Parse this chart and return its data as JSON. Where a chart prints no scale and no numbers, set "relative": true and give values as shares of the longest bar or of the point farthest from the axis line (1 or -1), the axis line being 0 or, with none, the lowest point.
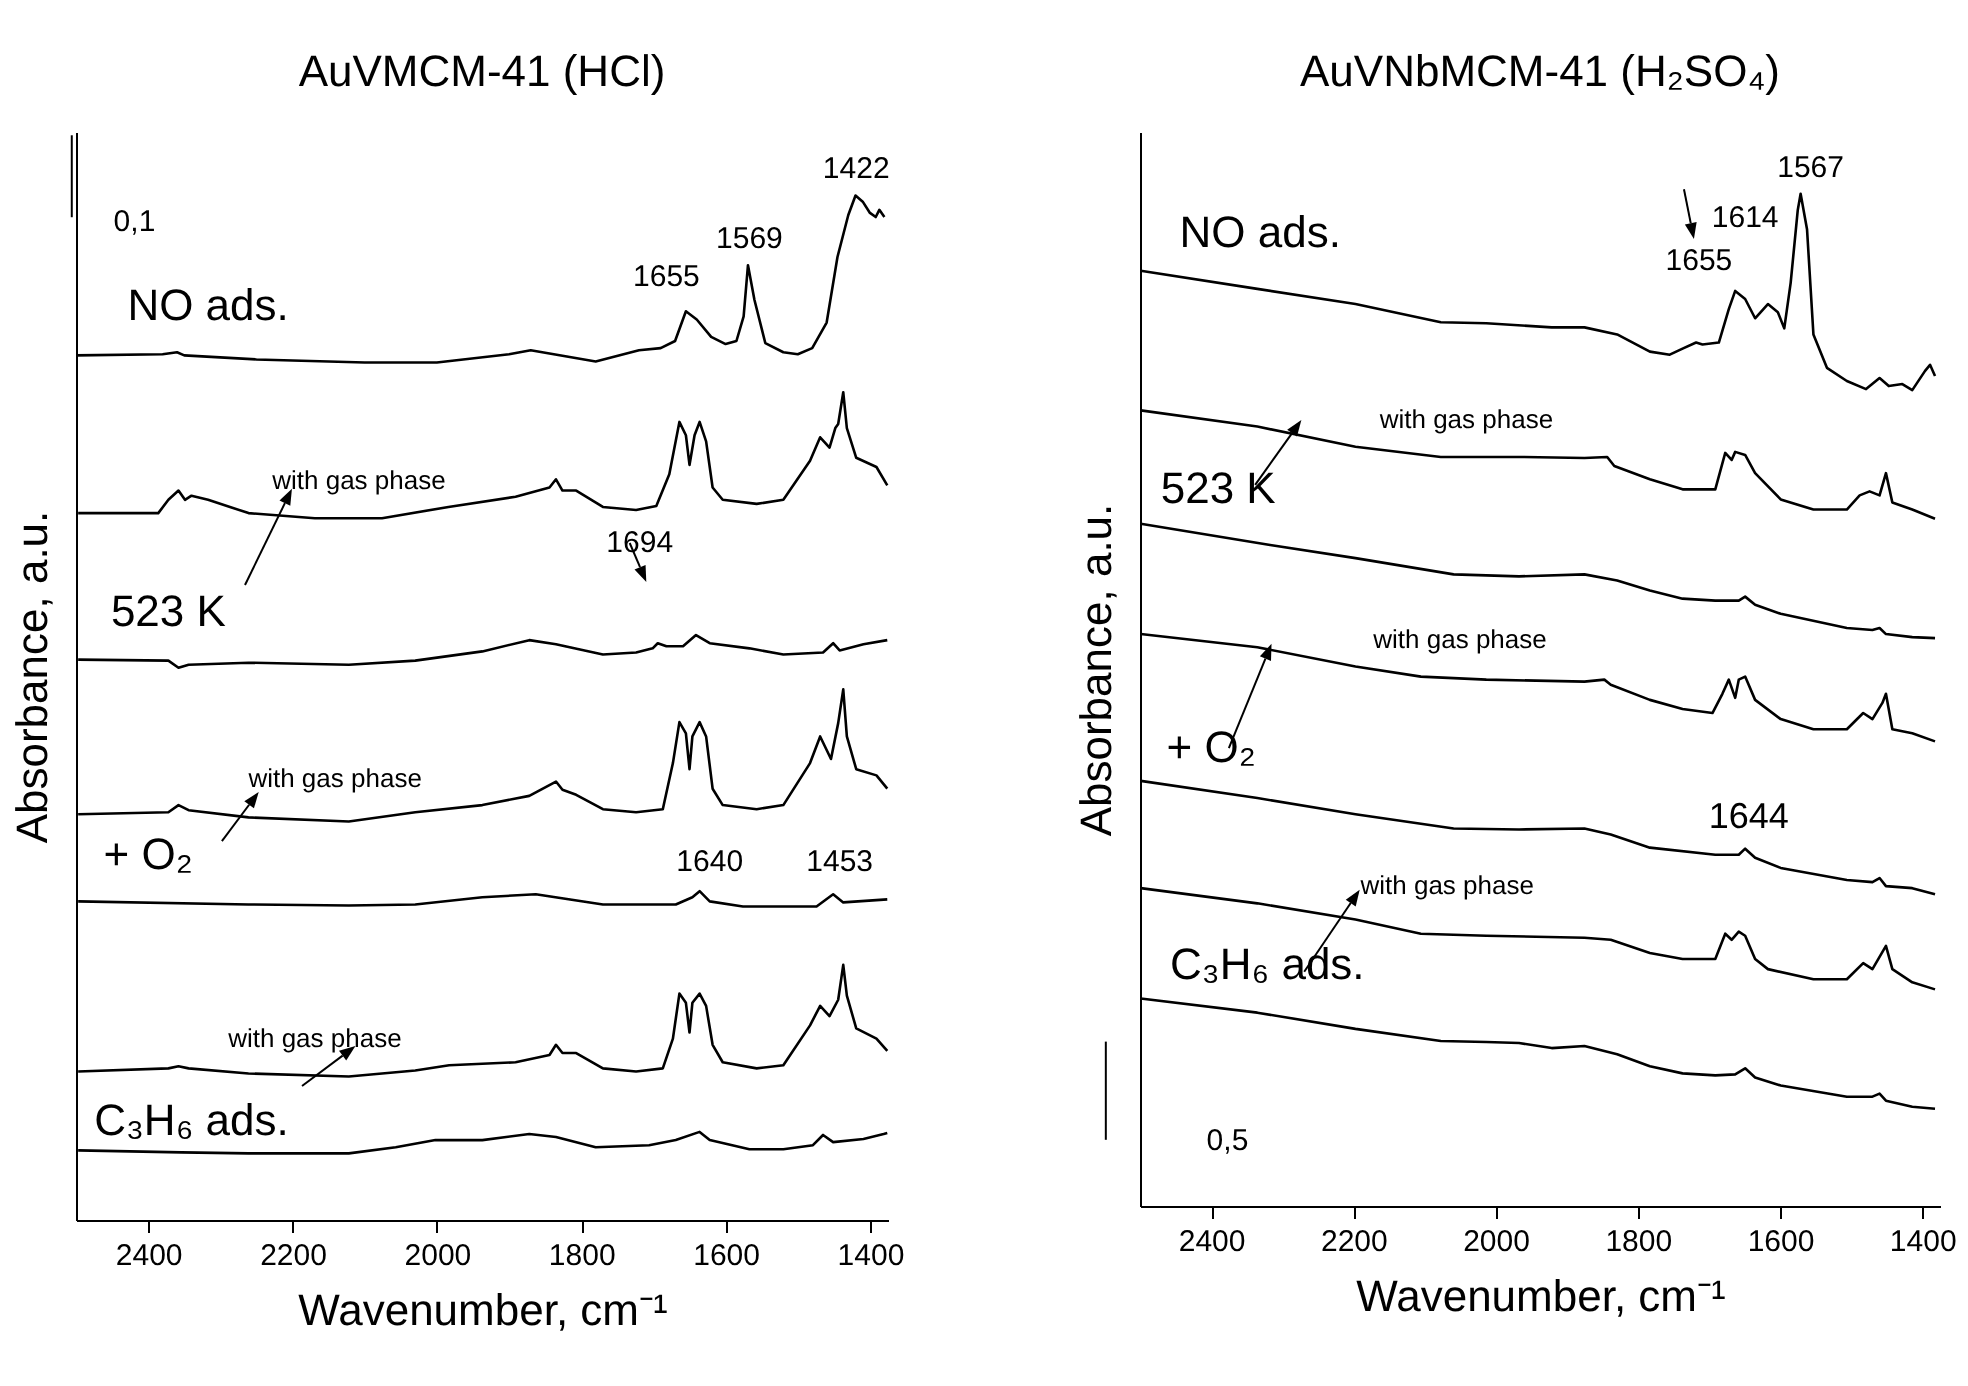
{
  "chart_data": [
    {
      "type": "line",
      "title": "AuVMCM-41 (HCl)",
      "xlabel": "Wavenumber, cm⁻¹",
      "ylabel": "Absorbance, a.u.",
      "relative": true,
      "xlim": [
        2500,
        1375
      ],
      "xticks": [
        2400,
        2200,
        2000,
        1800,
        1600,
        1400
      ],
      "series": [
        {
          "color": "#000000",
          "x": [
            2500,
            2380,
            2360,
            2350,
            2250,
            2100,
            2000,
            1900,
            1870,
            1830,
            1780,
            1720,
            1690,
            1670,
            1655,
            1640,
            1620,
            1600,
            1585,
            1575,
            1569,
            1560,
            1545,
            1520,
            1500,
            1480,
            1460,
            1445,
            1430,
            1420,
            1410,
            1400,
            1392,
            1387,
            1380
          ],
          "values": [
            0.844,
            0.845,
            0.847,
            0.844,
            0.84,
            0.837,
            0.837,
            0.845,
            0.849,
            0.844,
            0.838,
            0.849,
            0.851,
            0.858,
            0.887,
            0.879,
            0.862,
            0.855,
            0.858,
            0.882,
            0.932,
            0.898,
            0.856,
            0.847,
            0.845,
            0.851,
            0.876,
            0.94,
            0.981,
            1,
            0.994,
            0.983,
            0.979,
            0.986,
            0.979
          ]
        },
        {
          "color": "#000000",
          "x": [
            2497,
            2386,
            2372,
            2358,
            2349,
            2340,
            2317,
            2261,
            2169,
            2076,
            1984,
            1891,
            1844,
            1835,
            1826,
            1807,
            1770,
            1724,
            1696,
            1678,
            1664,
            1655,
            1650,
            1643,
            1636,
            1627,
            1618,
            1604,
            1557,
            1520,
            1483,
            1469,
            1456,
            1448,
            1444,
            1437,
            1432,
            1419,
            1391,
            1376
          ],
          "values": [
            0.69,
            0.69,
            0.703,
            0.712,
            0.703,
            0.707,
            0.703,
            0.69,
            0.685,
            0.685,
            0.696,
            0.706,
            0.715,
            0.723,
            0.712,
            0.712,
            0.696,
            0.693,
            0.697,
            0.728,
            0.779,
            0.766,
            0.737,
            0.766,
            0.779,
            0.76,
            0.715,
            0.703,
            0.699,
            0.703,
            0.741,
            0.764,
            0.754,
            0.773,
            0.777,
            0.808,
            0.773,
            0.744,
            0.735,
            0.717
          ]
        },
        {
          "color": "#000000",
          "x": [
            2497,
            2372,
            2358,
            2344,
            2261,
            2122,
            2030,
            1937,
            1872,
            1835,
            1770,
            1724,
            1701,
            1694,
            1682,
            1659,
            1641,
            1622,
            1567,
            1520,
            1465,
            1451,
            1442,
            1409,
            1376
          ],
          "values": [
            0.547,
            0.546,
            0.539,
            0.542,
            0.544,
            0.542,
            0.546,
            0.555,
            0.566,
            0.562,
            0.552,
            0.554,
            0.558,
            0.563,
            0.56,
            0.56,
            0.571,
            0.563,
            0.558,
            0.552,
            0.554,
            0.563,
            0.556,
            0.562,
            0.566
          ]
        },
        {
          "color": "#000000",
          "x": [
            2497,
            2372,
            2358,
            2344,
            2261,
            2122,
            2030,
            1937,
            1872,
            1835,
            1826,
            1807,
            1770,
            1724,
            1687,
            1673,
            1664,
            1655,
            1650,
            1646,
            1636,
            1627,
            1618,
            1604,
            1557,
            1520,
            1483,
            1469,
            1454,
            1444,
            1437,
            1432,
            1419,
            1391,
            1376
          ],
          "values": [
            0.396,
            0.398,
            0.405,
            0.4,
            0.393,
            0.389,
            0.398,
            0.405,
            0.414,
            0.428,
            0.42,
            0.415,
            0.401,
            0.398,
            0.401,
            0.446,
            0.486,
            0.475,
            0.44,
            0.472,
            0.486,
            0.472,
            0.421,
            0.405,
            0.401,
            0.405,
            0.446,
            0.472,
            0.45,
            0.485,
            0.518,
            0.472,
            0.44,
            0.434,
            0.421
          ]
        },
        {
          "color": "#000000",
          "x": [
            2497,
            2261,
            2122,
            2030,
            1937,
            1863,
            1770,
            1669,
            1646,
            1636,
            1622,
            1576,
            1474,
            1451,
            1437,
            1376
          ],
          "values": [
            0.311,
            0.308,
            0.307,
            0.308,
            0.315,
            0.318,
            0.308,
            0.308,
            0.315,
            0.321,
            0.311,
            0.306,
            0.306,
            0.318,
            0.31,
            0.313
          ]
        },
        {
          "color": "#000000",
          "x": [
            2497,
            2372,
            2358,
            2344,
            2261,
            2122,
            2030,
            1983,
            1891,
            1844,
            1835,
            1826,
            1807,
            1770,
            1724,
            1687,
            1673,
            1664,
            1655,
            1650,
            1646,
            1636,
            1627,
            1618,
            1604,
            1557,
            1520,
            1483,
            1469,
            1456,
            1444,
            1437,
            1432,
            1419,
            1391,
            1376
          ],
          "values": [
            0.145,
            0.148,
            0.15,
            0.148,
            0.143,
            0.14,
            0.146,
            0.151,
            0.154,
            0.161,
            0.171,
            0.163,
            0.163,
            0.148,
            0.145,
            0.148,
            0.177,
            0.221,
            0.212,
            0.183,
            0.212,
            0.221,
            0.209,
            0.171,
            0.154,
            0.148,
            0.151,
            0.19,
            0.209,
            0.199,
            0.215,
            0.249,
            0.219,
            0.187,
            0.177,
            0.165
          ]
        },
        {
          "color": "#000000",
          "x": [
            2497,
            2354,
            2261,
            2122,
            2057,
            2002,
            1937,
            1872,
            1835,
            1780,
            1706,
            1669,
            1636,
            1622,
            1567,
            1520,
            1479,
            1465,
            1451,
            1409,
            1381,
            1376
          ],
          "values": [
            0.068,
            0.066,
            0.065,
            0.065,
            0.071,
            0.078,
            0.078,
            0.084,
            0.081,
            0.071,
            0.073,
            0.078,
            0.086,
            0.078,
            0.069,
            0.069,
            0.073,
            0.083,
            0.076,
            0.079,
            0.084,
            0.085
          ]
        }
      ],
      "annotations": [
        "1422",
        "1569",
        "1655",
        "NO ads.",
        "with gas phase",
        "523 K",
        "1694",
        "with gas phase",
        "+ O₂",
        "1640",
        "1453",
        "with gas phase",
        "C₃H₆ ads.",
        "0,1"
      ]
    },
    {
      "type": "line",
      "title": "AuVNbMCM-41 (H₂SO₄)",
      "xlabel": "Wavenumber, cm⁻¹",
      "ylabel": "Absorbance, a.u.",
      "relative": true,
      "xlim": [
        2500,
        1375
      ],
      "xticks": [
        2400,
        2200,
        2000,
        1800,
        1600,
        1400
      ],
      "series": [
        {
          "color": "#000000",
          "x": [
            2499,
            2335,
            2197,
            2077,
            2013,
            1921,
            1875,
            1829,
            1783,
            1755,
            1737,
            1718,
            1709,
            1686,
            1672,
            1663,
            1649,
            1635,
            1617,
            1603,
            1594,
            1585,
            1575,
            1571,
            1562,
            1553,
            1534,
            1506,
            1479,
            1460,
            1447,
            1428,
            1414,
            1396,
            1389,
            1382
          ],
          "values": [
            0.924,
            0.906,
            0.891,
            0.873,
            0.872,
            0.868,
            0.868,
            0.861,
            0.844,
            0.841,
            0.847,
            0.853,
            0.851,
            0.853,
            0.886,
            0.904,
            0.896,
            0.877,
            0.891,
            0.883,
            0.867,
            0.912,
            0.984,
            1,
            0.965,
            0.861,
            0.828,
            0.815,
            0.807,
            0.818,
            0.81,
            0.812,
            0.806,
            0.825,
            0.831,
            0.82
          ]
        },
        {
          "color": "#000000",
          "x": [
            2499,
            2335,
            2197,
            2077,
            1967,
            1875,
            1843,
            1833,
            1783,
            1737,
            1691,
            1677,
            1668,
            1663,
            1649,
            1635,
            1599,
            1553,
            1506,
            1488,
            1474,
            1460,
            1451,
            1442,
            1414,
            1382
          ],
          "values": [
            0.786,
            0.77,
            0.75,
            0.74,
            0.74,
            0.739,
            0.74,
            0.731,
            0.718,
            0.708,
            0.708,
            0.744,
            0.737,
            0.745,
            0.742,
            0.724,
            0.698,
            0.688,
            0.688,
            0.702,
            0.706,
            0.702,
            0.724,
            0.695,
            0.688,
            0.679
          ]
        },
        {
          "color": "#000000",
          "x": [
            2499,
            2317,
            2197,
            2059,
            1967,
            1875,
            1829,
            1783,
            1737,
            1691,
            1658,
            1649,
            1635,
            1599,
            1506,
            1470,
            1460,
            1451,
            1414,
            1382
          ],
          "values": [
            0.674,
            0.653,
            0.64,
            0.624,
            0.622,
            0.624,
            0.618,
            0.608,
            0.6,
            0.598,
            0.598,
            0.602,
            0.594,
            0.585,
            0.571,
            0.569,
            0.571,
            0.565,
            0.562,
            0.561
          ]
        },
        {
          "color": "#000000",
          "x": [
            2499,
            2335,
            2197,
            2105,
            2013,
            1875,
            1847,
            1838,
            1783,
            1737,
            1695,
            1681,
            1672,
            1663,
            1658,
            1649,
            1635,
            1599,
            1553,
            1506,
            1483,
            1470,
            1456,
            1451,
            1442,
            1414,
            1382
          ],
          "values": [
            0.565,
            0.552,
            0.533,
            0.523,
            0.52,
            0.518,
            0.52,
            0.515,
            0.5,
            0.491,
            0.487,
            0.506,
            0.52,
            0.502,
            0.52,
            0.523,
            0.5,
            0.481,
            0.471,
            0.471,
            0.487,
            0.481,
            0.497,
            0.506,
            0.471,
            0.467,
            0.459
          ]
        },
        {
          "color": "#000000",
          "x": [
            2499,
            2335,
            2197,
            2059,
            1967,
            1875,
            1838,
            1783,
            1691,
            1658,
            1649,
            1635,
            1599,
            1506,
            1470,
            1460,
            1451,
            1414,
            1382
          ],
          "values": [
            0.42,
            0.403,
            0.387,
            0.373,
            0.372,
            0.373,
            0.367,
            0.354,
            0.347,
            0.347,
            0.353,
            0.344,
            0.334,
            0.322,
            0.32,
            0.324,
            0.316,
            0.314,
            0.308
          ]
        },
        {
          "color": "#000000",
          "x": [
            2499,
            2335,
            2197,
            2105,
            2013,
            1875,
            1838,
            1783,
            1737,
            1691,
            1677,
            1668,
            1658,
            1649,
            1635,
            1617,
            1553,
            1506,
            1483,
            1470,
            1451,
            1442,
            1414,
            1382
          ],
          "values": [
            0.314,
            0.299,
            0.283,
            0.269,
            0.267,
            0.265,
            0.263,
            0.25,
            0.244,
            0.244,
            0.269,
            0.263,
            0.271,
            0.267,
            0.244,
            0.234,
            0.224,
            0.224,
            0.24,
            0.234,
            0.257,
            0.234,
            0.221,
            0.214
          ]
        },
        {
          "color": "#000000",
          "x": [
            2499,
            2335,
            2197,
            2077,
            2013,
            1967,
            1921,
            1875,
            1829,
            1783,
            1737,
            1691,
            1663,
            1649,
            1635,
            1599,
            1506,
            1470,
            1460,
            1451,
            1414,
            1382
          ],
          "values": [
            0.205,
            0.191,
            0.175,
            0.163,
            0.162,
            0.161,
            0.156,
            0.158,
            0.15,
            0.138,
            0.131,
            0.129,
            0.13,
            0.136,
            0.127,
            0.119,
            0.108,
            0.108,
            0.111,
            0.104,
            0.098,
            0.096
          ]
        }
      ],
      "annotations": [
        "1567",
        "1614",
        "1655",
        "NO ads.",
        "with gas phase",
        "523 K",
        "with gas phase",
        "+ O₂",
        "1644",
        "with gas phase",
        "C₃H₆ ads.",
        "0,5"
      ]
    }
  ]
}
